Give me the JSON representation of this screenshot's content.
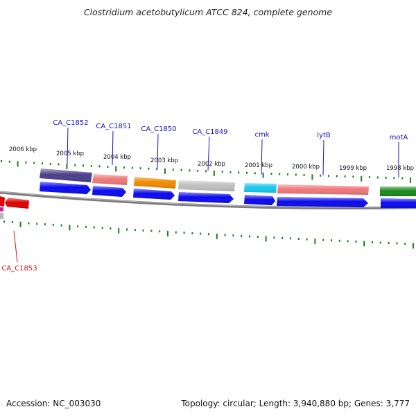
{
  "title": "Clostridium acetobutylicum ATCC 824, complete genome",
  "footer": {
    "accession": "Accession: NC_003030",
    "summary": "Topology: circular; Length: 3,940,880 bp; Genes: 3,777"
  },
  "colors": {
    "tick": "#1a7f1a",
    "backbone": "#7a7a7a",
    "label": "#1414c8",
    "label_red": "#d01010",
    "cds_arrow": "#0a0aee"
  },
  "kbp_labels": [
    "2006 kbp",
    "2005 kbp",
    "2004 kbp",
    "2003 kbp",
    "2002 kbp",
    "2001 kbp",
    "2000 kbp",
    "1999 kbp",
    "1998 kbp"
  ],
  "genes": [
    {
      "name": "CA_C1853",
      "color": "#e00000",
      "label_color": "#d01010"
    },
    {
      "name": "CA_C1852",
      "color": "#4a3f8a",
      "label_color": "#1414c8"
    },
    {
      "name": "CA_C1851",
      "color": "#f07878",
      "label_color": "#1414c8"
    },
    {
      "name": "CA_C1850",
      "color": "#f08a00",
      "label_color": "#1414c8"
    },
    {
      "name": "CA_C1849",
      "color": "#c0c0c0",
      "label_color": "#1414c8"
    },
    {
      "name": "cmk",
      "color": "#18c8f0",
      "label_color": "#1414c8"
    },
    {
      "name": "lytB",
      "color": "#f07878",
      "label_color": "#1414c8"
    },
    {
      "name": "motA",
      "color": "#1a8a1a",
      "label_color": "#1414c8"
    }
  ]
}
